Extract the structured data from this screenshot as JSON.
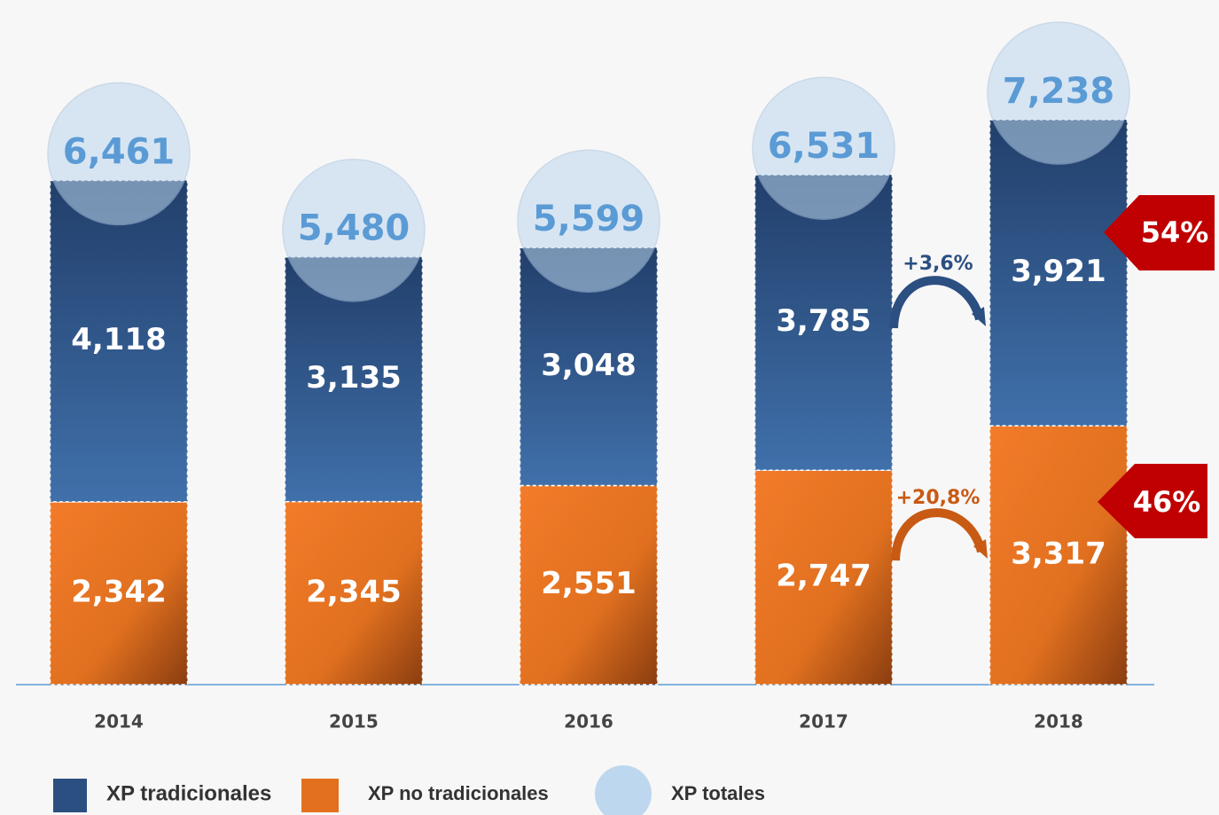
{
  "chart_data": {
    "type": "bar",
    "stacked": true,
    "categories": [
      "2014",
      "2015",
      "2016",
      "2017",
      "2018"
    ],
    "series": [
      {
        "name": "XP tradicionales",
        "color": "#2c4f82",
        "values": [
          4118,
          3135,
          3048,
          3785,
          3921
        ],
        "value_labels": [
          "4,118",
          "3,135",
          "3,048",
          "3,785",
          "3,921"
        ]
      },
      {
        "name": "XP no tradicionales",
        "color": "#e3701f",
        "values": [
          2342,
          2345,
          2551,
          2747,
          3317
        ],
        "value_labels": [
          "2,342",
          "2,345",
          "2,551",
          "2,747",
          "3,317"
        ]
      },
      {
        "name": "XP totales",
        "color": "#bdd7ee",
        "values": [
          6461,
          5480,
          5599,
          6531,
          7238
        ],
        "value_labels": [
          "6,461",
          "5,480",
          "5,599",
          "6,531",
          "7,238"
        ]
      }
    ],
    "annotations": [
      "+3,6%",
      "+20,8%",
      "54%",
      "46%"
    ]
  }
}
